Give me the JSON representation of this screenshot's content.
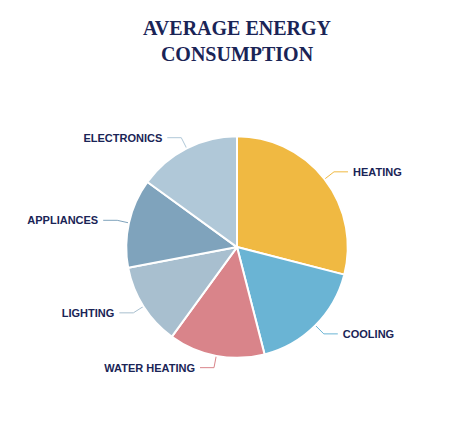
{
  "chart_data": {
    "type": "pie",
    "title": "AVERAGE ENERGY\nCONSUMPTION",
    "categories": [
      "HEATING",
      "COOLING",
      "WATER HEATING",
      "LIGHTING",
      "APPLIANCES",
      "ELECTRONICS"
    ],
    "values": [
      29,
      17,
      14,
      12,
      13,
      15
    ],
    "colors": [
      "#f0b942",
      "#6ab4d4",
      "#d9848a",
      "#a8bfcf",
      "#7fa3bc",
      "#b0c8d8"
    ]
  }
}
